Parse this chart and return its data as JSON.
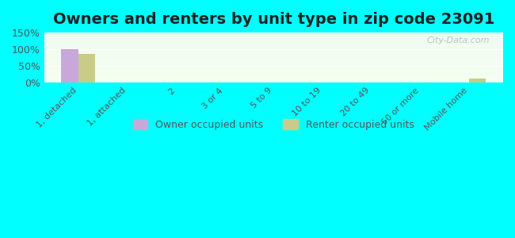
{
  "title": "Owners and renters by unit type in zip code 23091",
  "categories": [
    "1, detached",
    "1, attached",
    "2",
    "3 or 4",
    "5 to 9",
    "10 to 19",
    "20 to 49",
    "50 or more",
    "Mobile home"
  ],
  "owner_values": [
    100,
    0,
    0,
    0,
    0,
    0,
    0,
    0,
    0
  ],
  "renter_values": [
    85,
    0,
    0,
    0,
    0,
    0,
    0,
    0,
    13
  ],
  "owner_color": "#c8a8d8",
  "renter_color": "#c8cc88",
  "background_color": "#00ffff",
  "plot_bg_top": "#e8f5e8",
  "plot_bg_bottom": "#f5ffe8",
  "ylim": [
    0,
    150
  ],
  "yticks": [
    0,
    50,
    100,
    150
  ],
  "ytick_labels": [
    "0%",
    "50%",
    "100%",
    "150%"
  ],
  "watermark": "City-Data.com",
  "legend_owner": "Owner occupied units",
  "legend_renter": "Renter occupied units",
  "title_fontsize": 14,
  "bar_width": 0.35
}
